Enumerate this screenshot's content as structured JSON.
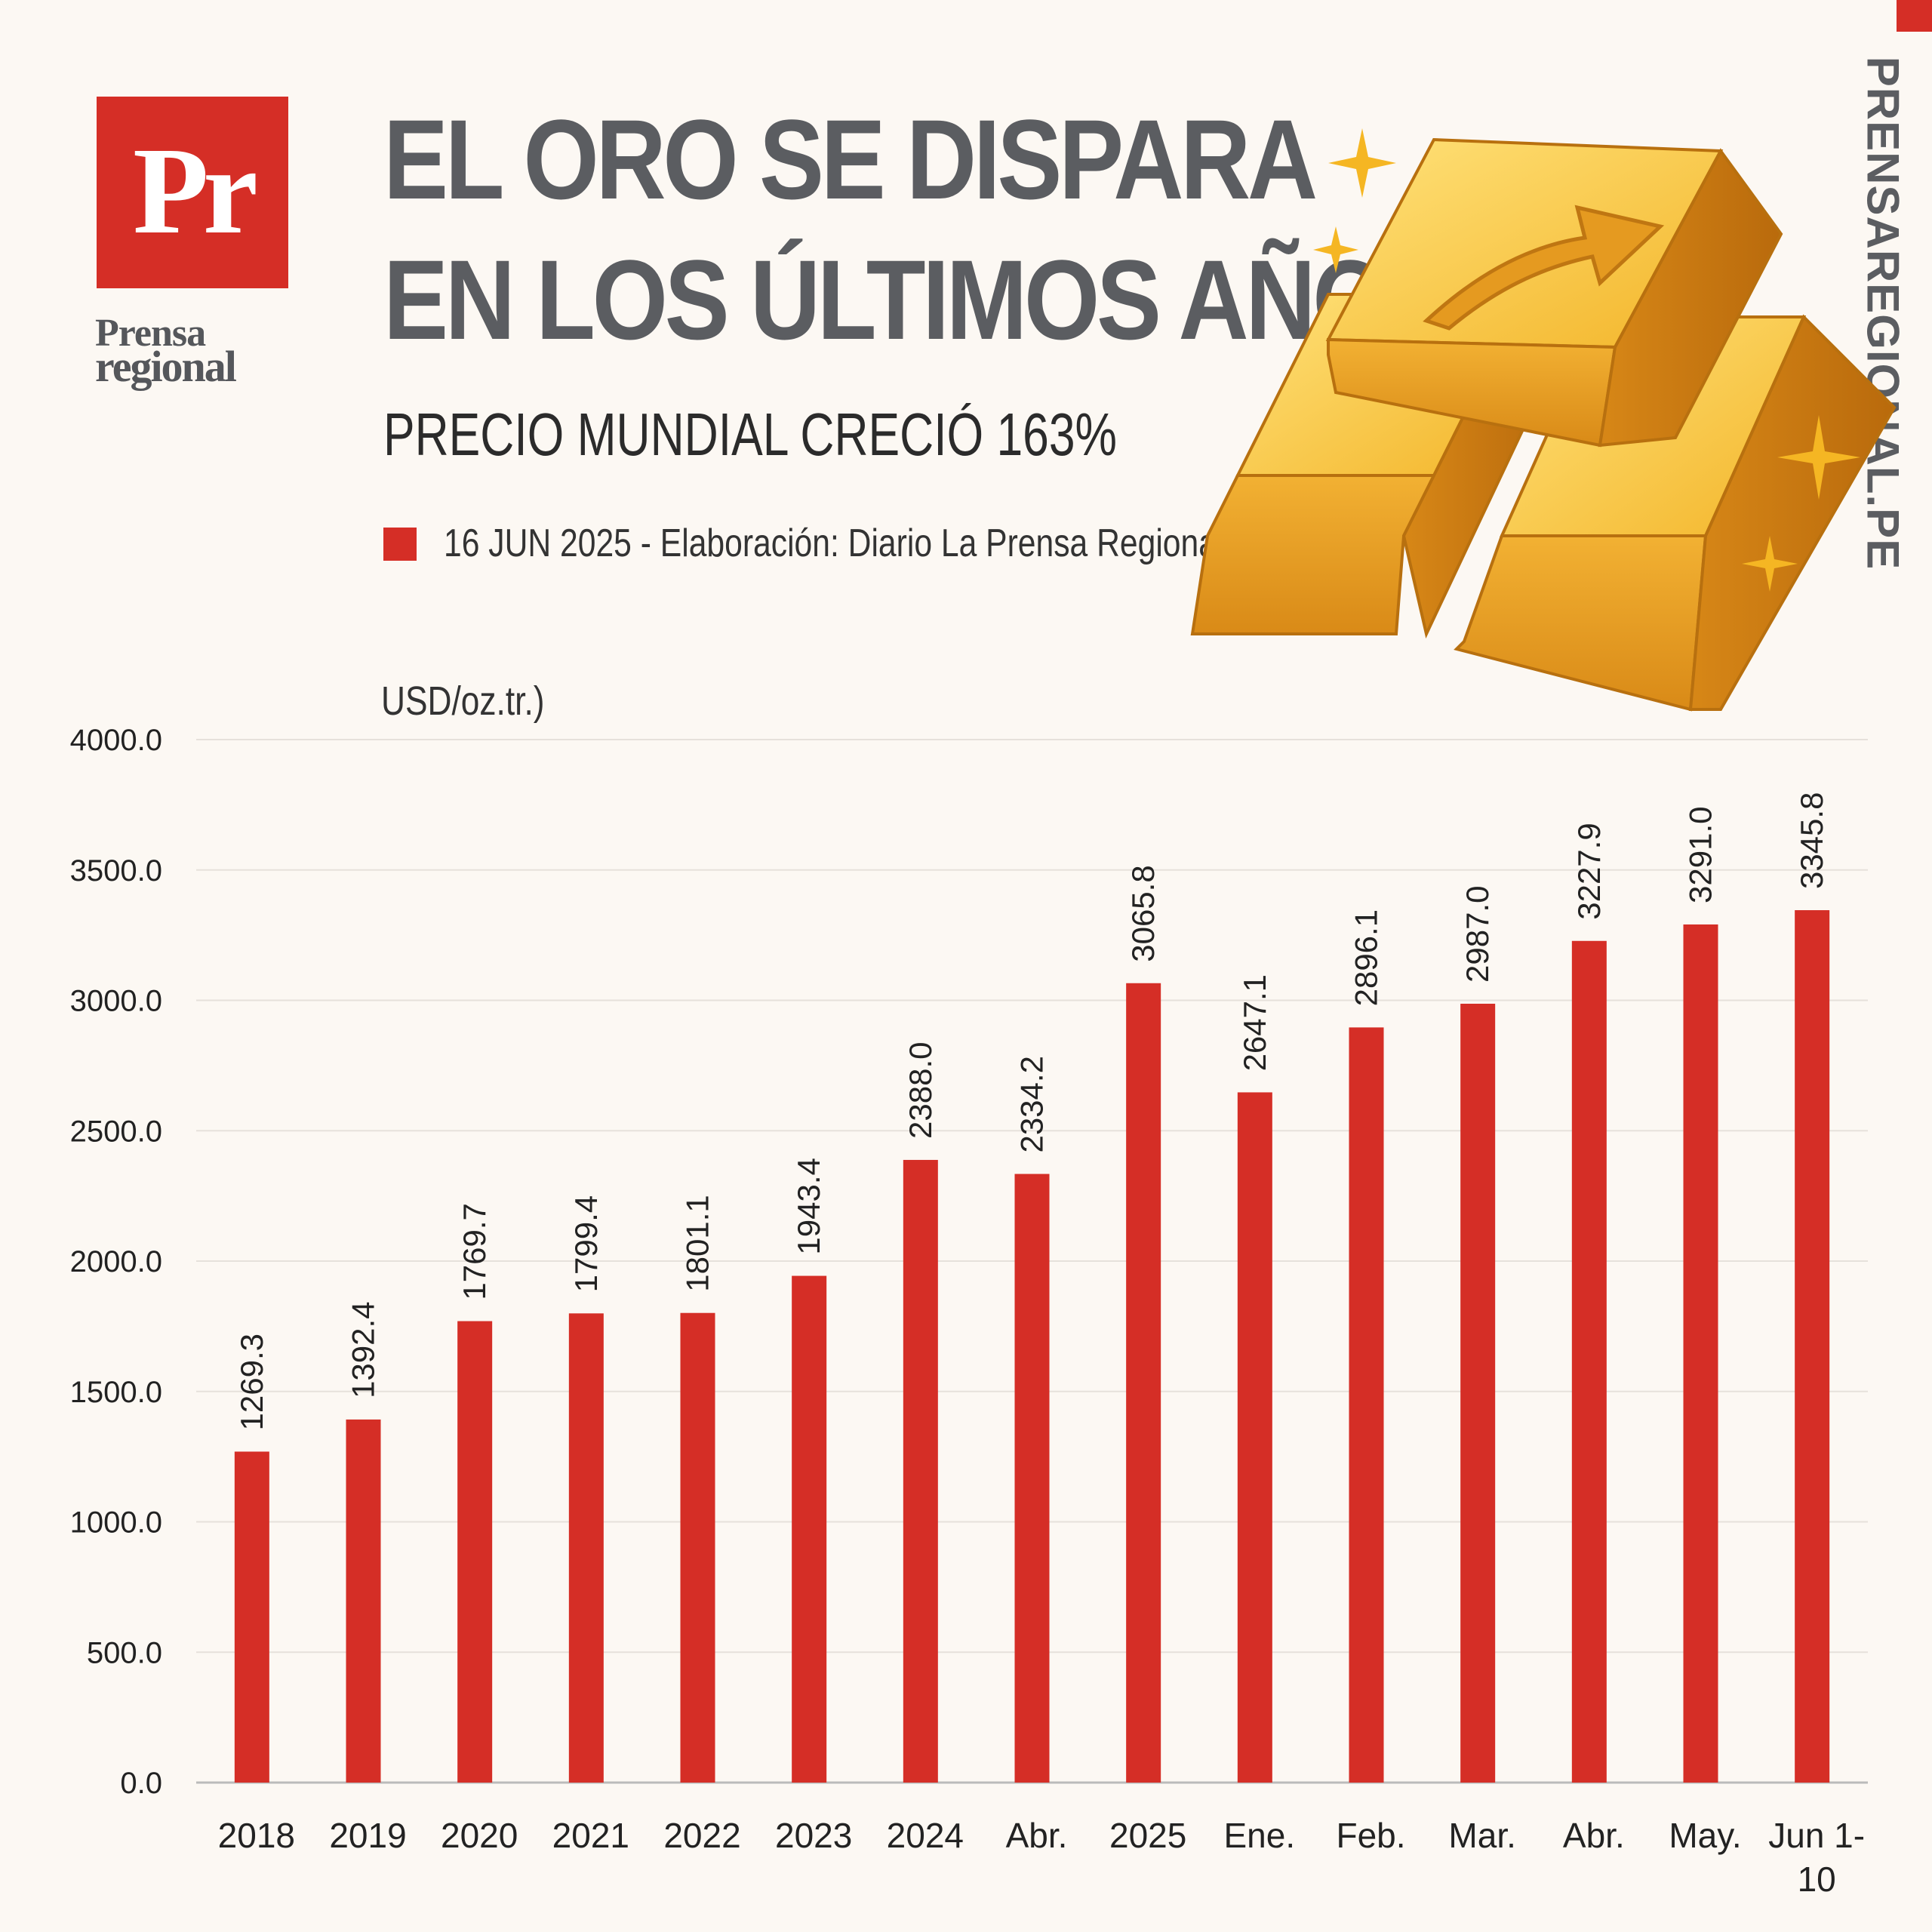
{
  "brand": {
    "logo_text": "Pr",
    "name_line1": "Prensa",
    "name_line2": "regional",
    "website": "PRENSAREGIONAL.PE"
  },
  "header": {
    "title_line1": "EL ORO SE DISPARA",
    "title_line2": "EN LOS ÚLTIMOS AÑOS",
    "subtitle": "PRECIO MUNDIAL CRECIÓ 163%",
    "source": "16 JUN 2025 -  Elaboración: Diario La Prensa Regional"
  },
  "colors": {
    "accent": "#d52e26",
    "title": "#5b5d61",
    "background": "#fcf8f3"
  },
  "illustration": {
    "icon": "gold-bars-up-arrow-icon"
  },
  "chart_data": {
    "type": "bar",
    "title": "",
    "xlabel": "",
    "ylabel": "USD/oz.tr.)",
    "ylim": [
      0,
      4000
    ],
    "yticks": [
      "0.0",
      "500.0",
      "1000.0",
      "1500.0",
      "2000.0",
      "2500.0",
      "3000.0",
      "3500.0",
      "4000.0"
    ],
    "grid": true,
    "categories": [
      "2018",
      "2019",
      "2020",
      "2021",
      "2022",
      "2023",
      "2024",
      "Abr.",
      "2025",
      "Ene.",
      "Feb.",
      "Mar.",
      "Abr.",
      "May.",
      "Jun 1-10"
    ],
    "values": [
      1269.3,
      1392.4,
      1769.7,
      1799.4,
      1801.1,
      1943.4,
      2388.0,
      2334.2,
      3065.8,
      2647.1,
      2896.1,
      2987.0,
      3227.9,
      3291.0,
      3345.8
    ],
    "value_labels": [
      "1269.3",
      "1392.4",
      "1769.7",
      "1799.4",
      "1801.1",
      "1943.4",
      "2388.0",
      "2334.2",
      "3065.8",
      "2647.1",
      "2896.1",
      "2987.0",
      "3227.9",
      "3291.0",
      "3345.8"
    ],
    "bar_color": "#d52e26"
  }
}
